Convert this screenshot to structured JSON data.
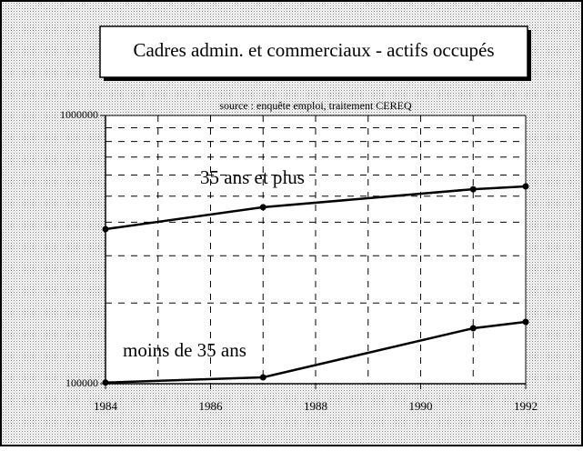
{
  "chart_data": {
    "type": "line",
    "title": "Cadres admin. et commerciaux - actifs occupés",
    "subtitle": "source : enquête emploi, traitement CEREQ",
    "x": [
      1984,
      1987,
      1991,
      1992
    ],
    "series": [
      {
        "name": "35 ans et plus",
        "color": "#000000",
        "values": [
          377000,
          455000,
          531000,
          544000
        ]
      },
      {
        "name": "moins de 35 ans",
        "color": "#000000",
        "values": [
          101000,
          105600,
          161000,
          170000
        ]
      }
    ],
    "xlim": [
      1984,
      1992
    ],
    "xticks": [
      1984,
      1986,
      1988,
      1990,
      1992
    ],
    "ylim": [
      100000,
      1000000
    ],
    "yticks": [
      100000,
      1000000
    ],
    "ylog": true,
    "grid": true,
    "minor_grid": true
  }
}
